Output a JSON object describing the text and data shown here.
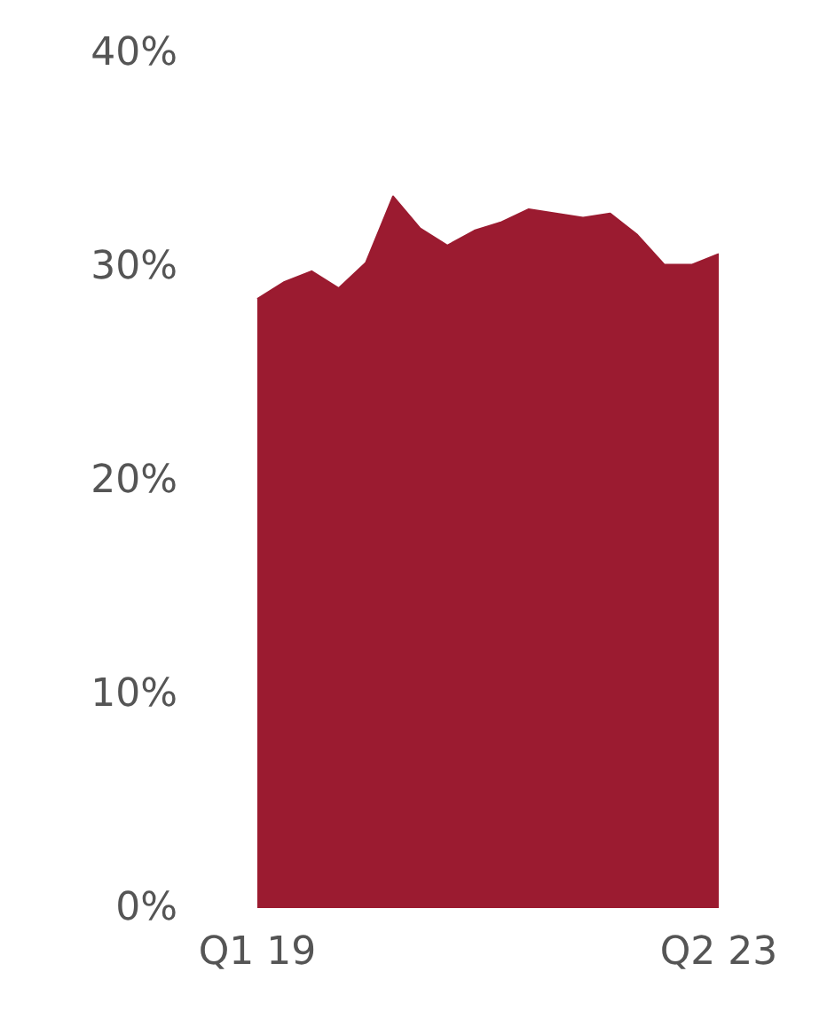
{
  "chart_data": {
    "type": "area",
    "categories": [
      "Q1 19",
      null,
      null,
      null,
      null,
      null,
      null,
      null,
      null,
      null,
      null,
      null,
      null,
      null,
      null,
      null,
      null,
      "Q2 23"
    ],
    "series": [
      {
        "color": "#9b1b30",
        "values": [
          28.5,
          29.3,
          29.8,
          29.0,
          30.2,
          33.3,
          31.8,
          31.0,
          31.7,
          32.1,
          32.7,
          32.5,
          32.3,
          32.5,
          31.5,
          30.1,
          30.1,
          30.6
        ]
      }
    ],
    "ylim": [
      0,
      40
    ],
    "yticks": [
      {
        "value": 0,
        "label": "0%"
      },
      {
        "value": 10,
        "label": "10%"
      },
      {
        "value": 20,
        "label": "20%"
      },
      {
        "value": 30,
        "label": "30%"
      },
      {
        "value": 40,
        "label": "40%"
      }
    ],
    "grid": false
  }
}
